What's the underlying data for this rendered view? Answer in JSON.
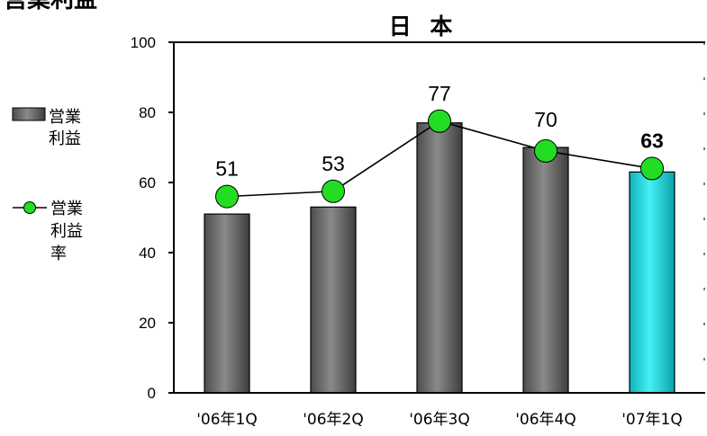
{
  "page": {
    "heading": "営業利益"
  },
  "chart_data": {
    "type": "bar",
    "title": "日 本",
    "categories": [
      "'06年1Q",
      "'06年2Q",
      "'06年3Q",
      "'06年4Q",
      "'07年1Q"
    ],
    "series": [
      {
        "name": "営業利益",
        "kind": "bar",
        "values": [
          51,
          53,
          77,
          70,
          63
        ],
        "data_labels": [
          "51",
          "53",
          "77",
          "70",
          "63"
        ],
        "colors": [
          "#6e6e6e",
          "#6e6e6e",
          "#6e6e6e",
          "#6e6e6e",
          "#11c7cf"
        ]
      },
      {
        "name": "営業利益率",
        "kind": "line",
        "values": [
          56,
          57.5,
          77.5,
          69,
          64
        ],
        "color": "#000000",
        "marker_color": "#22dd22"
      }
    ],
    "ylim": [
      0,
      100
    ],
    "yticks": [
      "0",
      "20",
      "40",
      "60",
      "80",
      "100"
    ],
    "legend_position": "left",
    "grid": false,
    "highlight_index": 4
  },
  "legend": {
    "bar_label_lines": [
      "営業",
      "利益"
    ],
    "line_label_lines": [
      "営業",
      "利益",
      "率"
    ]
  }
}
